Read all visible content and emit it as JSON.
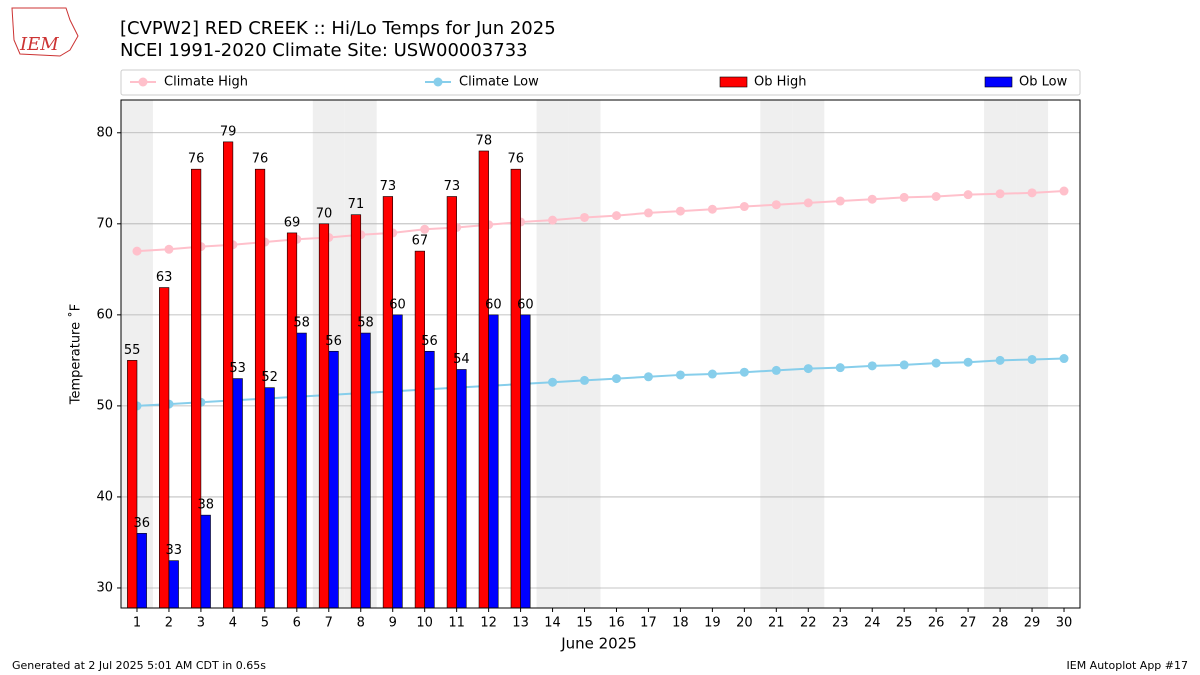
{
  "logo": "IEM",
  "chart_data": {
    "type": "bar",
    "title": "[CVPW2] RED CREEK :: Hi/Lo Temps for Jun 2025",
    "subtitle": "NCEI 1991-2020 Climate Site: USW00003733",
    "xlabel": "June 2025",
    "ylabel": "Temperature ˚F",
    "x": [
      1,
      2,
      3,
      4,
      5,
      6,
      7,
      8,
      9,
      10,
      11,
      12,
      13,
      14,
      15,
      16,
      17,
      18,
      19,
      20,
      21,
      22,
      23,
      24,
      25,
      26,
      27,
      28,
      29,
      30
    ],
    "xlim": [
      0.5,
      30.5
    ],
    "xticks": [
      1,
      2,
      3,
      4,
      5,
      6,
      7,
      8,
      9,
      10,
      11,
      12,
      13,
      14,
      15,
      16,
      17,
      18,
      19,
      20,
      21,
      22,
      23,
      24,
      25,
      26,
      27,
      28,
      29,
      30
    ],
    "ylim": [
      27.8,
      83.6
    ],
    "yticks": [
      30,
      40,
      50,
      60,
      70,
      80
    ],
    "grid": true,
    "shaded_days": [
      1,
      7,
      8,
      14,
      15,
      21,
      22,
      28,
      29
    ],
    "shade_color": "#efefef",
    "series": [
      {
        "name": "Climate High",
        "type": "line",
        "color": "#ffc0cb",
        "values": [
          67.0,
          67.2,
          67.5,
          67.7,
          68.0,
          68.3,
          68.5,
          68.8,
          69.0,
          69.4,
          69.6,
          69.9,
          70.2,
          70.4,
          70.7,
          70.9,
          71.2,
          71.4,
          71.6,
          71.9,
          72.1,
          72.3,
          72.5,
          72.7,
          72.9,
          73.0,
          73.2,
          73.3,
          73.4,
          73.6
        ]
      },
      {
        "name": "Climate Low",
        "type": "line",
        "color": "#87ceeb",
        "values": [
          50.0,
          50.2,
          50.4,
          50.6,
          50.8,
          51.0,
          51.2,
          51.4,
          51.6,
          51.8,
          52.0,
          52.2,
          52.4,
          52.6,
          52.8,
          53.0,
          53.2,
          53.4,
          53.5,
          53.7,
          53.9,
          54.1,
          54.2,
          54.4,
          54.5,
          54.7,
          54.8,
          55.0,
          55.1,
          55.2
        ]
      },
      {
        "name": "Ob High",
        "type": "bar",
        "color": "#ff0000",
        "values": [
          55,
          63,
          76,
          79,
          76,
          69,
          70,
          71,
          73,
          67,
          73,
          78,
          76,
          null,
          null,
          null,
          null,
          null,
          null,
          null,
          null,
          null,
          null,
          null,
          null,
          null,
          null,
          null,
          null,
          null
        ]
      },
      {
        "name": "Ob Low",
        "type": "bar",
        "color": "#0000ff",
        "values": [
          36,
          33,
          38,
          53,
          52,
          58,
          56,
          58,
          60,
          56,
          54,
          60,
          60,
          null,
          null,
          null,
          null,
          null,
          null,
          null,
          null,
          null,
          null,
          null,
          null,
          null,
          null,
          null,
          null,
          null
        ]
      }
    ]
  },
  "footer_left": "Generated at 2 Jul 2025 5:01 AM CDT in 0.65s",
  "footer_right": "IEM Autoplot App #17"
}
